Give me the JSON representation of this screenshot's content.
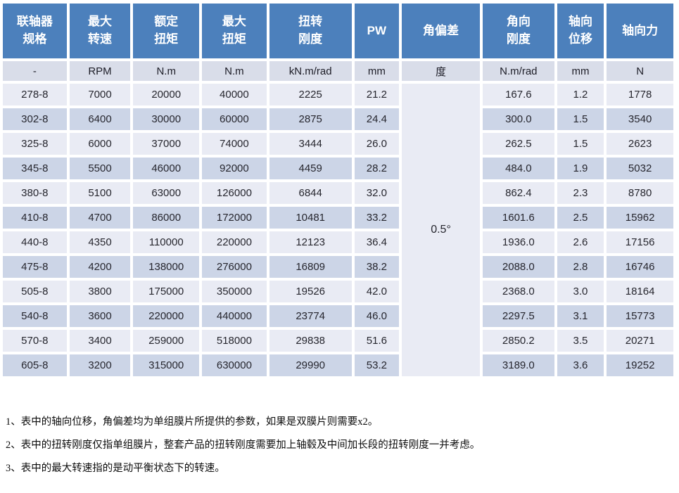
{
  "table": {
    "headers": [
      "联轴器\n规格",
      "最大\n转速",
      "额定\n扭矩",
      "最大\n扭矩",
      "扭转\n刚度",
      "PW",
      "角偏差",
      "角向\n刚度",
      "轴向\n位移",
      "轴向力"
    ],
    "units": [
      "-",
      "RPM",
      "N.m",
      "N.m",
      "kN.m/rad",
      "mm",
      "度",
      "N.m/rad",
      "mm",
      "N"
    ],
    "angular_deviation": "0.5°",
    "rows": [
      [
        "278-8",
        "7000",
        "20000",
        "40000",
        "2225",
        "21.2",
        "167.6",
        "1.2",
        "1778"
      ],
      [
        "302-8",
        "6400",
        "30000",
        "60000",
        "2875",
        "24.4",
        "300.0",
        "1.5",
        "3540"
      ],
      [
        "325-8",
        "6000",
        "37000",
        "74000",
        "3444",
        "26.0",
        "262.5",
        "1.5",
        "2623"
      ],
      [
        "345-8",
        "5500",
        "46000",
        "92000",
        "4459",
        "28.2",
        "484.0",
        "1.9",
        "5032"
      ],
      [
        "380-8",
        "5100",
        "63000",
        "126000",
        "6844",
        "32.0",
        "862.4",
        "2.3",
        "8780"
      ],
      [
        "410-8",
        "4700",
        "86000",
        "172000",
        "10481",
        "33.2",
        "1601.6",
        "2.5",
        "15962"
      ],
      [
        "440-8",
        "4350",
        "110000",
        "220000",
        "12123",
        "36.4",
        "1936.0",
        "2.6",
        "17156"
      ],
      [
        "475-8",
        "4200",
        "138000",
        "276000",
        "16809",
        "38.2",
        "2088.0",
        "2.8",
        "16746"
      ],
      [
        "505-8",
        "3800",
        "175000",
        "350000",
        "19526",
        "42.0",
        "2368.0",
        "3.0",
        "18164"
      ],
      [
        "540-8",
        "3600",
        "220000",
        "440000",
        "23774",
        "46.0",
        "2297.5",
        "3.1",
        "15773"
      ],
      [
        "570-8",
        "3400",
        "259000",
        "518000",
        "29838",
        "51.6",
        "2850.2",
        "3.5",
        "20271"
      ],
      [
        "605-8",
        "3200",
        "315000",
        "630000",
        "29990",
        "53.2",
        "3189.0",
        "3.6",
        "19252"
      ]
    ]
  },
  "colors": {
    "header_bg": "#4C80BC",
    "units_bg": "#D9DDE9",
    "row_light_bg": "#E9EBF4",
    "row_dark_bg": "#CCD5E7",
    "header_text": "#ffffff",
    "body_text": "#26262e"
  },
  "footnotes": [
    "1、表中的轴向位移，角偏差均为单组膜片所提供的参数，如果是双膜片则需要x2。",
    "2、表中的扭转刚度仅指单组膜片，整套产品的扭转刚度需要加上轴毂及中间加长段的扭转刚度一并考虑。",
    "3、表中的最大转速指的是动平衡状态下的转速。"
  ]
}
